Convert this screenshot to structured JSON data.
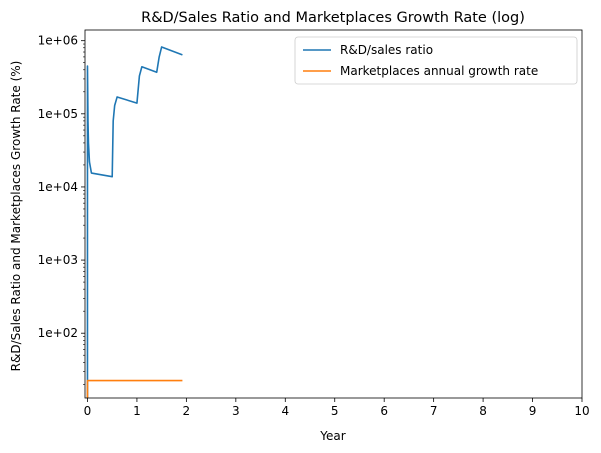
{
  "chart_data": {
    "type": "line",
    "title": "R&D/Sales Ratio and Marketplaces Growth Rate (log)",
    "xlabel": "Year",
    "ylabel": "R&D/Sales Ratio and Marketplaces Growth Rate (%)",
    "xlim": [
      -0.05,
      10
    ],
    "ylim": [
      13,
      1400000
    ],
    "yscale": "log",
    "grid": false,
    "legend_position": "top-right",
    "xticks": [
      0,
      1,
      2,
      3,
      4,
      5,
      6,
      7,
      8,
      9,
      10
    ],
    "xtick_labels": [
      "0",
      "1",
      "2",
      "3",
      "4",
      "5",
      "6",
      "7",
      "8",
      "9",
      "10"
    ],
    "yticks": [
      100,
      1000,
      10000,
      100000,
      1000000
    ],
    "ytick_labels": [
      "1e+02",
      "1e+03",
      "1e+04",
      "1e+05",
      "1e+06"
    ],
    "series": [
      {
        "name": "R&D/sales ratio",
        "color": "#1f77b4",
        "x": [
          0.0,
          0.0,
          0.005,
          0.01,
          0.02,
          0.04,
          0.08,
          0.5,
          0.52,
          0.55,
          0.6,
          1.0,
          1.05,
          1.1,
          1.4,
          1.45,
          1.5,
          1.92
        ],
        "y": [
          13,
          450000,
          200000,
          80000,
          40000,
          22000,
          15500,
          13800,
          80000,
          130000,
          170000,
          140000,
          330000,
          440000,
          370000,
          600000,
          820000,
          640000
        ]
      },
      {
        "name": "Marketplaces annual growth rate",
        "color": "#ff7f0e",
        "x": [
          0.0,
          0.0,
          0.02,
          1.92
        ],
        "y": [
          13,
          22.5,
          22.5,
          22.5
        ]
      }
    ]
  }
}
